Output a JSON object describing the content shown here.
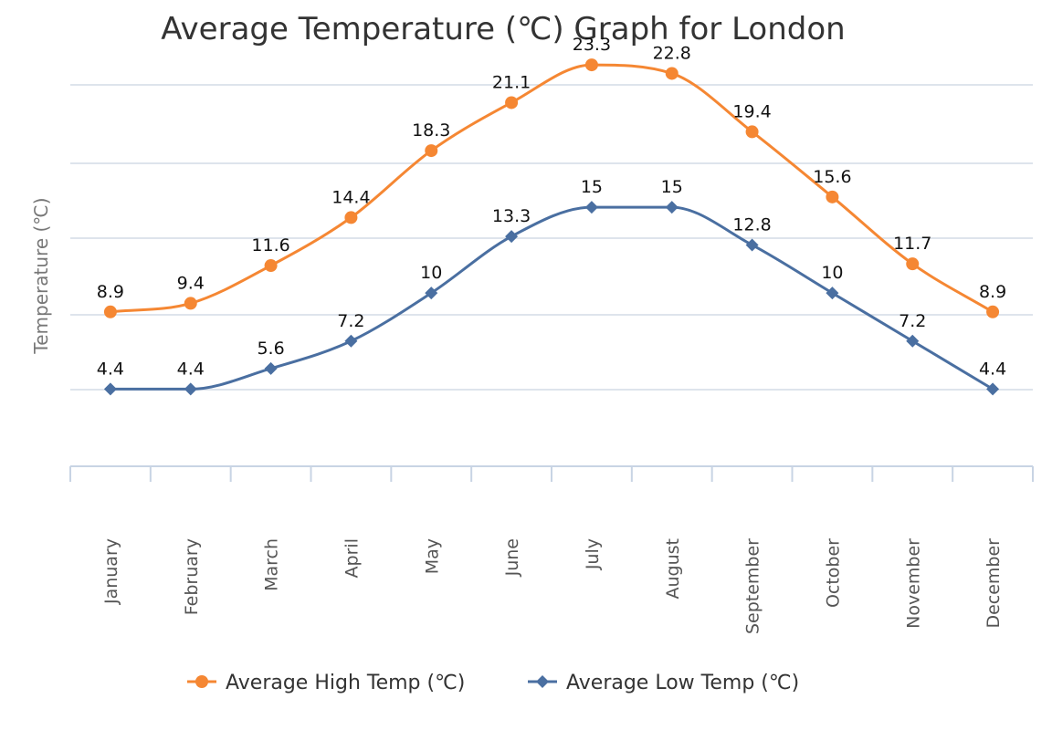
{
  "chart_data": {
    "type": "line",
    "title": "Average Temperature (℃) Graph for London",
    "ylabel": "Temperature (℃)",
    "xlabel": "",
    "categories": [
      "January",
      "February",
      "March",
      "April",
      "May",
      "June",
      "July",
      "August",
      "September",
      "October",
      "November",
      "December"
    ],
    "series": [
      {
        "name": "Average High Temp (℃)",
        "color": "#f58733",
        "values": [
          8.9,
          9.4,
          11.6,
          14.4,
          18.3,
          21.1,
          23.3,
          22.8,
          19.4,
          15.6,
          11.7,
          8.9
        ]
      },
      {
        "name": "Average Low Temp (℃)",
        "color": "#4a6fa1",
        "values": [
          4.4,
          4.4,
          5.6,
          7.2,
          10,
          13.3,
          15,
          15,
          12.8,
          10,
          7.2,
          4.4
        ]
      }
    ],
    "grid": true,
    "legend_position": "bottom",
    "smooth": true
  }
}
